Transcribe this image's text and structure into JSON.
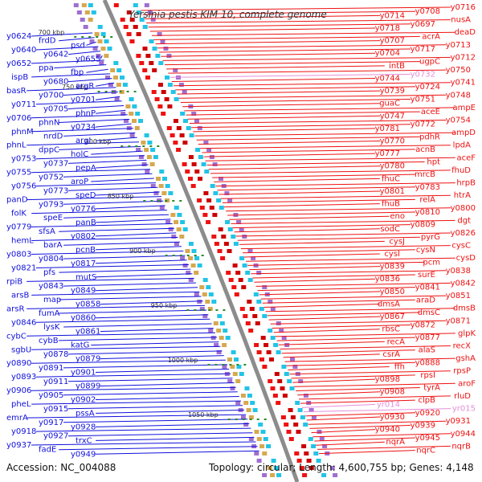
{
  "title": "Yersinia pestis KIM 10, complete genome",
  "footer": {
    "accession": "Accession: NC_004088",
    "topology": "Topology: circular; Length: 4,600,755 bp; Genes: 4,148"
  },
  "colors": {
    "left_genes": "#1010dd",
    "right_genes": "#ee1111",
    "faded_genes": "#e58fd8",
    "backbone": "#8c8c8c",
    "tick": "#2a8a2a"
  },
  "scale_labels": [
    "700 kbp",
    "750 kbp",
    "800 kbp",
    "850 kbp",
    "900 kbp",
    "950 kbp",
    "1000 kbp",
    "1050 kbp"
  ],
  "left_genes": [
    "y0624",
    "frdD",
    "psd",
    "y0640",
    "y0642",
    "y0655",
    "y0652",
    "ppa",
    "fbp",
    "ispB",
    "y0680",
    "argR",
    "basR",
    "y0700",
    "y0701",
    "y0711",
    "y0705",
    "phnP",
    "y0706",
    "phnN",
    "y0734",
    "phnM",
    "nrdD",
    "argI",
    "phnL",
    "dppC",
    "holC",
    "y0753",
    "y0737",
    "pepA",
    "y0755",
    "y0752",
    "aroP",
    "y0756",
    "y0773",
    "speD",
    "panD",
    "y0793",
    "y0776",
    "folK",
    "speE",
    "panB",
    "y0779",
    "sfsA",
    "y0802",
    "hemL",
    "barA",
    "pcnB",
    "y0803",
    "y0804",
    "y0817",
    "y0821",
    "pfs",
    "mutS",
    "rpiB",
    "y0843",
    "y0849",
    "arsB",
    "map",
    "y0858",
    "arsR",
    "fumA",
    "y0860",
    "y0846",
    "lysK",
    "y0861",
    "cybC",
    "cybB",
    "katG",
    "sgbU",
    "y0878",
    "y0879",
    "y0890",
    "y0891",
    "y0901",
    "y0893",
    "y0911",
    "y0899",
    "y0906",
    "y0905",
    "y0902",
    "pheL",
    "y0915",
    "pssA",
    "emrA",
    "y0917",
    "y0928",
    "y0918",
    "y0927",
    "trxC",
    "y0937",
    "fadE",
    "y0949"
  ],
  "right_genes": [
    "y0716",
    "y0708",
    "y0714",
    "nusA",
    "y0697",
    "y0718",
    "deaD",
    "acrA",
    "y0707",
    "y0713",
    "y0717",
    "y0704",
    "y0712",
    "ugpC",
    "intB",
    "y0750",
    "y0732",
    "y0744",
    "y0741",
    "y0724",
    "y0739",
    "y0748",
    "y0751",
    "guaC",
    "ampE",
    "aceE",
    "y0747",
    "y0754",
    "y0772",
    "y0781",
    "ampD",
    "pdhR",
    "y0770",
    "lpdA",
    "acnB",
    "y0777",
    "aceF",
    "hpt",
    "y0780",
    "fhuD",
    "mrcB",
    "fhuC",
    "hrpB",
    "y0783",
    "y0801",
    "htrA",
    "relA",
    "fhuB",
    "y0800",
    "y0810",
    "eno",
    "dgt",
    "y0809",
    "sodC",
    "y0826",
    "pyrG",
    "cysJ",
    "cysC",
    "cysN",
    "cysI",
    "cysD",
    "pcm",
    "y0839",
    "y0838",
    "surE",
    "y0836",
    "y0842",
    "y0841",
    "y0850",
    "y0851",
    "araD",
    "dmsA",
    "dmsB",
    "dmsC",
    "y0867",
    "y0871",
    "y0872",
    "rbsC",
    "glpK",
    "y0877",
    "recA",
    "recX",
    "alaS",
    "csrA",
    "gshA",
    "y0888",
    "ffh",
    "rpsP",
    "rpsI",
    "y0898",
    "aroF",
    "tyrA",
    "y0908",
    "rluD",
    "clpB",
    "yr014",
    "yr015",
    "y0920",
    "y0930",
    "y0931",
    "y0939",
    "y0940",
    "y0944",
    "y0945",
    "nqrA",
    "nqrB",
    "nqrC"
  ]
}
